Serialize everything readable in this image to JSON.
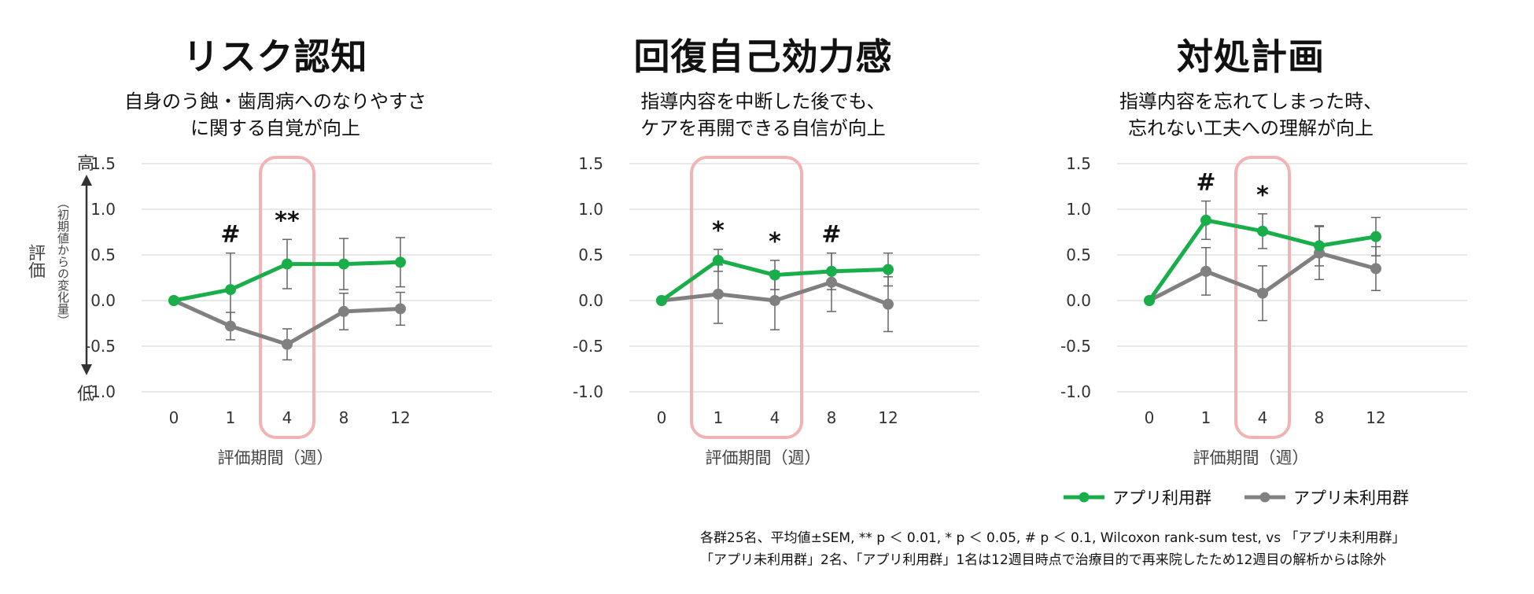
{
  "colors": {
    "app": "#1aae4b",
    "nonapp": "#808080",
    "highlight": "#f2b3b5",
    "grid": "#d9d9d9",
    "errbar": "#666666"
  },
  "axis": {
    "high_label": "高",
    "low_label": "低",
    "y_title": "評価",
    "y_subtitle": "（初期値からの変化量）"
  },
  "legend": {
    "app_label": "アプリ利用群",
    "nonapp_label": "アプリ未利用群"
  },
  "footnote": {
    "line1": "各群25名、平均値±SEM, ** p ＜ 0.01, * p ＜ 0.05, # p ＜ 0.1, Wilcoxon rank-sum test, vs 「アプリ未利用群」",
    "line2": "「アプリ未利用群」2名、「アプリ利用群」1名は12週目時点で治療目的で再来院したため12週目の解析からは除外"
  },
  "chart_data": [
    {
      "type": "line",
      "title": "リスク認知",
      "subtitle": [
        "自身のう蝕・歯周病へのなりやすさ",
        "に関する自覚が向上"
      ],
      "xlabel": "評価期間（週）",
      "ylabel": "評価（初期値からの変化量）",
      "categories": [
        "0",
        "1",
        "4",
        "8",
        "12"
      ],
      "ylim": [
        -1.0,
        1.5
      ],
      "yticks": [
        "1.5",
        "1.0",
        "0.5",
        "0.0",
        "-0.5",
        "-1.0"
      ],
      "highlight": [
        2,
        2
      ],
      "series": [
        {
          "name": "アプリ利用群",
          "values": [
            0.0,
            0.12,
            0.4,
            0.4,
            0.42
          ],
          "sem": [
            0.0,
            0.4,
            0.27,
            0.28,
            0.27
          ]
        },
        {
          "name": "アプリ未利用群",
          "values": [
            0.0,
            -0.28,
            -0.48,
            -0.12,
            -0.09
          ],
          "sem": [
            0.0,
            0.15,
            0.17,
            0.2,
            0.18
          ]
        }
      ],
      "significance": [
        "",
        "#",
        "**",
        "",
        ""
      ]
    },
    {
      "type": "line",
      "title": "回復自己効力感",
      "subtitle": [
        "指導内容を中断した後でも、",
        "ケアを再開できる自信が向上"
      ],
      "xlabel": "評価期間（週）",
      "ylabel": "",
      "categories": [
        "0",
        "1",
        "4",
        "8",
        "12"
      ],
      "ylim": [
        -1.0,
        1.5
      ],
      "yticks": [
        "1.5",
        "1.0",
        "0.5",
        "0.0",
        "-0.5",
        "-1.0"
      ],
      "highlight": [
        1,
        2
      ],
      "series": [
        {
          "name": "アプリ利用群",
          "values": [
            0.0,
            0.44,
            0.28,
            0.32,
            0.34
          ],
          "sem": [
            0.0,
            0.12,
            0.16,
            0.2,
            0.18
          ]
        },
        {
          "name": "アプリ未利用群",
          "values": [
            0.0,
            0.07,
            0.0,
            0.2,
            -0.04
          ],
          "sem": [
            0.0,
            0.32,
            0.32,
            0.32,
            0.3
          ]
        }
      ],
      "significance": [
        "",
        "*",
        "*",
        "#",
        ""
      ]
    },
    {
      "type": "line",
      "title": "対処計画",
      "subtitle": [
        "指導内容を忘れてしまった時、",
        "忘れない工夫への理解が向上"
      ],
      "xlabel": "評価期間（週）",
      "ylabel": "",
      "categories": [
        "0",
        "1",
        "4",
        "8",
        "12"
      ],
      "ylim": [
        -1.0,
        1.5
      ],
      "yticks": [
        "1.5",
        "1.0",
        "0.5",
        "0.0",
        "-0.5",
        "-1.0"
      ],
      "highlight": [
        2,
        2
      ],
      "series": [
        {
          "name": "アプリ利用群",
          "values": [
            0.0,
            0.88,
            0.76,
            0.6,
            0.7
          ],
          "sem": [
            0.0,
            0.21,
            0.19,
            0.22,
            0.21
          ]
        },
        {
          "name": "アプリ未利用群",
          "values": [
            0.0,
            0.32,
            0.08,
            0.52,
            0.35
          ],
          "sem": [
            0.0,
            0.26,
            0.3,
            0.29,
            0.24
          ]
        }
      ],
      "significance": [
        "",
        "#",
        "*",
        "",
        ""
      ]
    }
  ]
}
